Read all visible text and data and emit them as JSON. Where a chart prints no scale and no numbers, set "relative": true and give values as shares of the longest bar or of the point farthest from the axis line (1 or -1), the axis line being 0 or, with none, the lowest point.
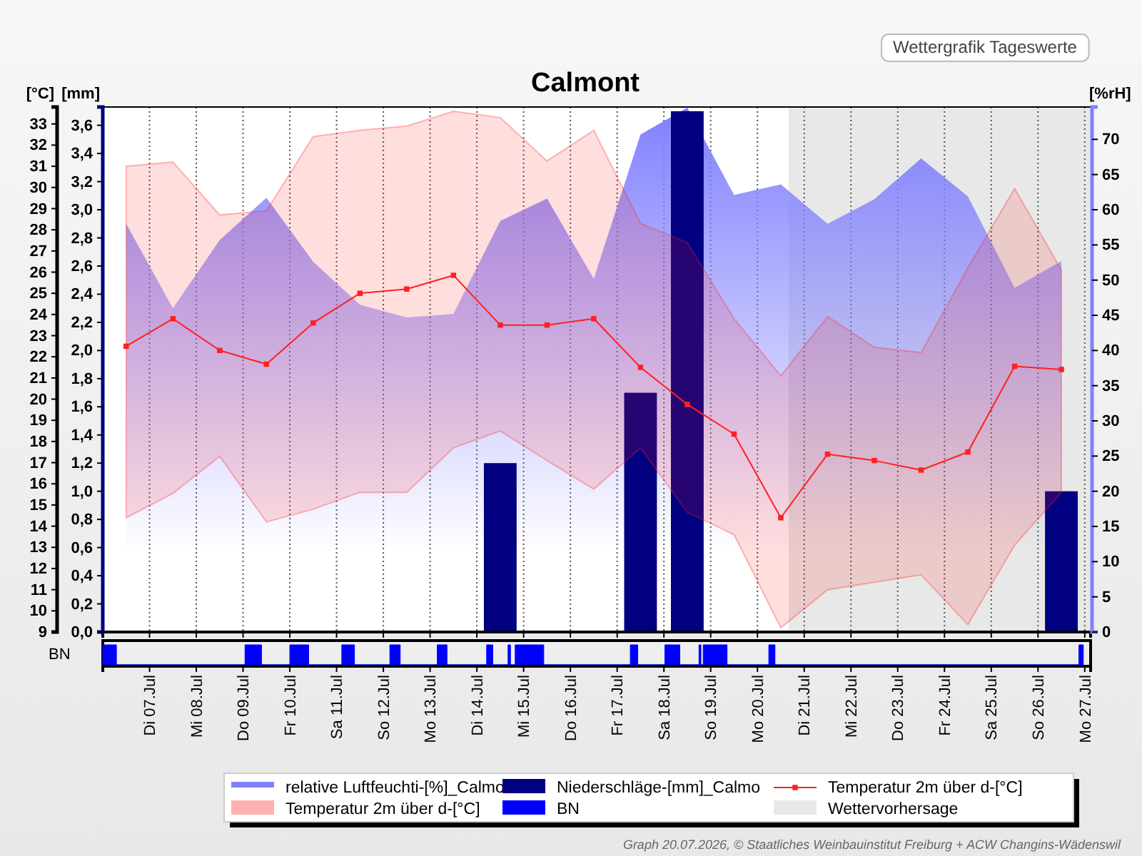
{
  "chart_data": [
    {
      "type": "line",
      "title": "Calmont",
      "subtitle": "Wettergrafik Tageswerte",
      "ylabel": "[°C]",
      "y2label": "[mm]",
      "y3label": "[%rH]",
      "annotations": [
        "Graph 20.07.2026, © Staatliches Weinbauinstitut Freiburg + ACW Changins-Wädenswil"
      ],
      "xlim": [
        "2026-07-06",
        "2026-07-27T03:00"
      ],
      "xticks": [
        {
          "value": "2026-07-07",
          "label": null
        },
        {
          "value": "2026-07-08",
          "label": null
        },
        {
          "value": "2026-07-09",
          "label": null
        },
        {
          "value": "2026-07-10",
          "label": null
        },
        {
          "value": "2026-07-11",
          "label": null
        },
        {
          "value": "2026-07-12",
          "label": null
        },
        {
          "value": "2026-07-13",
          "label": null
        },
        {
          "value": "2026-07-14",
          "label": null
        },
        {
          "value": "2026-07-15",
          "label": null
        },
        {
          "value": "2026-07-16",
          "label": null
        },
        {
          "value": "2026-07-17",
          "label": null
        },
        {
          "value": "2026-07-18",
          "label": null
        },
        {
          "value": "2026-07-19",
          "label": null
        },
        {
          "value": "2026-07-20",
          "label": null
        },
        {
          "value": "2026-07-21",
          "label": null
        },
        {
          "value": "2026-07-22",
          "label": null
        },
        {
          "value": "2026-07-23",
          "label": null
        },
        {
          "value": "2026-07-24",
          "label": null
        },
        {
          "value": "2026-07-25",
          "label": null
        },
        {
          "value": "2026-07-26",
          "label": null
        },
        {
          "value": "2026-07-27",
          "label": null
        }
      ],
      "ylim": [
        9,
        33.8
      ],
      "yticks": [
        9,
        10,
        11,
        12,
        13,
        14,
        15,
        16,
        17,
        18,
        19,
        20,
        21,
        22,
        23,
        24,
        25,
        26,
        27,
        28,
        29,
        30,
        31,
        32,
        33
      ],
      "y2lim": [
        0,
        3.73
      ],
      "y2ticks": [
        {
          "value": 0,
          "label": "0,0"
        },
        {
          "value": 0.2,
          "label": "0,2"
        },
        {
          "value": 0.4,
          "label": "0,4"
        },
        {
          "value": 0.6,
          "label": "0,6"
        },
        {
          "value": 0.8,
          "label": "0,8"
        },
        {
          "value": 1.0,
          "label": "1,0"
        },
        {
          "value": 1.2,
          "label": "1,2"
        },
        {
          "value": 1.4,
          "label": "1,4"
        },
        {
          "value": 1.6,
          "label": "1,6"
        },
        {
          "value": 1.8,
          "label": "1,8"
        },
        {
          "value": 2.0,
          "label": "2,0"
        },
        {
          "value": 2.2,
          "label": "2,2"
        },
        {
          "value": 2.4,
          "label": "2,4"
        },
        {
          "value": 2.6,
          "label": "2,6"
        },
        {
          "value": 2.8,
          "label": "2,8"
        },
        {
          "value": 3.0,
          "label": "3,0"
        },
        {
          "value": 3.2,
          "label": "3,2"
        },
        {
          "value": 3.4,
          "label": "3,4"
        },
        {
          "value": 3.6,
          "label": "3,6"
        }
      ],
      "y3lim": [
        0,
        74.6
      ],
      "y3ticks": [
        0,
        5,
        10,
        15,
        20,
        25,
        30,
        35,
        40,
        45,
        50,
        55,
        60,
        65,
        70
      ],
      "grid": "x",
      "legend": "bottom",
      "tick_labels": "y",
      "bands": [
        {
          "axis": "x",
          "from": "2026-07-20T16:00",
          "to": "2026-07-27T03:00",
          "label": "Wettervorhersage",
          "color": "#e8e8e8"
        }
      ],
      "x": [
        "2026-07-06T12:00",
        "2026-07-07T12:00",
        "2026-07-08T12:00",
        "2026-07-09T12:00",
        "2026-07-10T12:00",
        "2026-07-11T12:00",
        "2026-07-12T12:00",
        "2026-07-13T12:00",
        "2026-07-14T12:00",
        "2026-07-15T12:00",
        "2026-07-16T12:00",
        "2026-07-17T12:00",
        "2026-07-18T12:00",
        "2026-07-19T12:00",
        "2026-07-20T12:00",
        "2026-07-21T12:00",
        "2026-07-22T12:00",
        "2026-07-23T12:00",
        "2026-07-24T12:00",
        "2026-07-25T12:00",
        "2026-07-26T12:00"
      ],
      "series": [
        {
          "name": "relative Luftfeuchti-[%]_Calmo",
          "type": "area",
          "axis": "y3",
          "color": "#8080ff",
          "values": [
            58.0,
            46.0,
            55.7,
            61.7,
            52.6,
            46.5,
            44.7,
            45.2,
            58.4,
            61.6,
            50.2,
            70.7,
            74.5,
            62.1,
            63.6,
            58.0,
            61.5,
            67.3,
            61.9,
            48.9,
            52.7
          ]
        },
        {
          "name": "Niederschläge-[mm]_Calmo",
          "type": "bar",
          "axis": "y2",
          "color": "#000080",
          "values": [
            null,
            null,
            null,
            null,
            null,
            null,
            null,
            null,
            1.2,
            null,
            null,
            1.7,
            3.7,
            null,
            null,
            null,
            null,
            null,
            null,
            null,
            1.0
          ]
        },
        {
          "name": "Temperatur 2m über d-[°C]",
          "type": "line",
          "color": "#ff2020",
          "marker": "square",
          "values": [
            22.5,
            23.8,
            22.3,
            21.65,
            23.6,
            25.0,
            25.2,
            25.85,
            23.5,
            23.5,
            23.8,
            21.5,
            19.75,
            18.35,
            14.4,
            17.4,
            17.1,
            16.65,
            17.5,
            21.55,
            21.4
          ],
          "lower": [
            14.4,
            15.55,
            17.3,
            14.2,
            14.8,
            15.6,
            15.6,
            17.7,
            18.5,
            17.1,
            15.75,
            17.7,
            14.65,
            13.6,
            9.2,
            11.0,
            11.35,
            11.7,
            9.35,
            13.1,
            15.6
          ],
          "upper": [
            31.0,
            31.2,
            28.7,
            28.9,
            32.4,
            32.7,
            32.9,
            33.6,
            33.3,
            31.25,
            32.7,
            28.3,
            27.4,
            23.8,
            21.1,
            23.9,
            22.45,
            22.2,
            26.2,
            29.95,
            26.1
          ]
        }
      ]
    },
    {
      "type": "area",
      "relative": true,
      "ylabel": "BN",
      "xlim": [
        "2026-07-06",
        "2026-07-27T03:00"
      ],
      "x": [
        "2026-07-06T00:00",
        "2026-07-06T00:00",
        "2026-07-06T07:00",
        "2026-07-06T07:00",
        "2026-07-09T01:00",
        "2026-07-09T01:00",
        "2026-07-09T09:30",
        "2026-07-09T09:30",
        "2026-07-10T00:00",
        "2026-07-10T00:00",
        "2026-07-10T09:40",
        "2026-07-10T09:40",
        "2026-07-11T02:40",
        "2026-07-11T02:40",
        "2026-07-11T09:10",
        "2026-07-11T09:10",
        "2026-07-12T03:20",
        "2026-07-12T03:20",
        "2026-07-12T08:40",
        "2026-07-12T08:40",
        "2026-07-13T03:40",
        "2026-07-13T03:40",
        "2026-07-13T08:40",
        "2026-07-13T08:40",
        "2026-07-14T05:00",
        "2026-07-14T05:00",
        "2026-07-14T08:10",
        "2026-07-14T08:10",
        "2026-07-14T16:00",
        "2026-07-14T16:00",
        "2026-07-14T17:15",
        "2026-07-14T17:15",
        "2026-07-14T19:40",
        "2026-07-14T19:40",
        "2026-07-15T10:20",
        "2026-07-15T10:20",
        "2026-07-17T06:45",
        "2026-07-17T06:45",
        "2026-07-17T10:35",
        "2026-07-17T10:35",
        "2026-07-18T00:30",
        "2026-07-18T00:30",
        "2026-07-18T08:10",
        "2026-07-18T08:10",
        "2026-07-18T18:00",
        "2026-07-18T18:00",
        "2026-07-18T19:00",
        "2026-07-18T19:00",
        "2026-07-18T20:10",
        "2026-07-18T20:10",
        "2026-07-19T08:25",
        "2026-07-19T08:25",
        "2026-07-20T05:50",
        "2026-07-20T05:50",
        "2026-07-20T09:00",
        "2026-07-20T09:00",
        "2026-07-26T21:00",
        "2026-07-26T21:00",
        "2026-07-26T23:15",
        "2026-07-26T23:15"
      ],
      "series": [
        {
          "name": "BN",
          "color": "#0000ff",
          "values": [
            0,
            1,
            1,
            0,
            0,
            1,
            1,
            0,
            0,
            1,
            1,
            0,
            0,
            1,
            1,
            0,
            0,
            1,
            1,
            0,
            0,
            1,
            1,
            0,
            0,
            1,
            1,
            0,
            0,
            1,
            1,
            0,
            0,
            1,
            1,
            0,
            0,
            1,
            1,
            0,
            0,
            1,
            1,
            0,
            0,
            1,
            1,
            0,
            0,
            1,
            1,
            0,
            0,
            1,
            1,
            0,
            0,
            1,
            1,
            0
          ]
        }
      ],
      "xticks": [
        {
          "value": "2026-07-07",
          "label": "Di 07.Jul"
        },
        {
          "value": "2026-07-08",
          "label": "Mi 08.Jul"
        },
        {
          "value": "2026-07-09",
          "label": "Do 09.Jul"
        },
        {
          "value": "2026-07-10",
          "label": "Fr 10.Jul"
        },
        {
          "value": "2026-07-11",
          "label": "Sa 11.Jul"
        },
        {
          "value": "2026-07-12",
          "label": "So 12.Jul"
        },
        {
          "value": "2026-07-13",
          "label": "Mo 13.Jul"
        },
        {
          "value": "2026-07-14",
          "label": "Di 14.Jul"
        },
        {
          "value": "2026-07-15",
          "label": "Mi 15.Jul"
        },
        {
          "value": "2026-07-16",
          "label": "Do 16.Jul"
        },
        {
          "value": "2026-07-17",
          "label": "Fr 17.Jul"
        },
        {
          "value": "2026-07-18",
          "label": "Sa 18.Jul"
        },
        {
          "value": "2026-07-19",
          "label": "So 19.Jul"
        },
        {
          "value": "2026-07-20",
          "label": "Mo 20.Jul"
        },
        {
          "value": "2026-07-21",
          "label": "Di 21.Jul"
        },
        {
          "value": "2026-07-22",
          "label": "Mi 22.Jul"
        },
        {
          "value": "2026-07-23",
          "label": "Do 23.Jul"
        },
        {
          "value": "2026-07-24",
          "label": "Fr 24.Jul"
        },
        {
          "value": "2026-07-25",
          "label": "Sa 25.Jul"
        },
        {
          "value": "2026-07-26",
          "label": "So 26.Jul"
        },
        {
          "value": "2026-07-27",
          "label": "Mo 27.Jul"
        }
      ],
      "tick_labels": "x"
    }
  ]
}
